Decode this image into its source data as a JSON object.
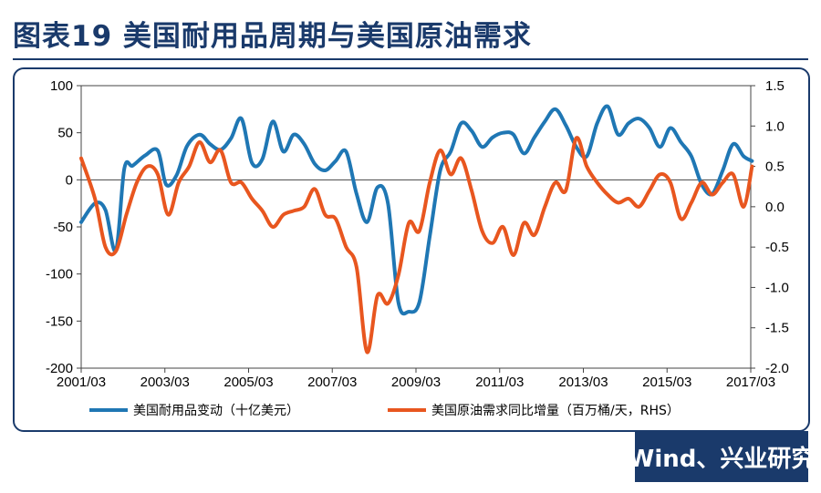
{
  "title": "图表19  美国耐用品周期与美国原油需求",
  "source": "Wind、兴业研究",
  "colors": {
    "title": "#1a3a6b",
    "frame": "#1a3a6b",
    "series1": "#1f77b4",
    "series2": "#e8561f"
  },
  "chart_data": {
    "type": "line",
    "title": "美国耐用品周期与美国原油需求",
    "x_ticks": [
      "2001/03",
      "2003/03",
      "2005/03",
      "2007/03",
      "2009/03",
      "2011/03",
      "2013/03",
      "2015/03",
      "2017/03"
    ],
    "x_range": [
      2001.17,
      2017.17
    ],
    "y_left": {
      "min": -200,
      "max": 100,
      "ticks": [
        "100",
        "50",
        "0",
        "-50",
        "-100",
        "-150",
        "-200"
      ]
    },
    "y_right": {
      "min": -2.0,
      "max": 1.5,
      "ticks": [
        "1.5",
        "1.0",
        "0.5",
        "0.0",
        "-0.5",
        "-1.0",
        "-1.5",
        "-2.0"
      ]
    },
    "series": [
      {
        "name": "美国耐用品变动（十亿美元）",
        "axis": "left",
        "x": [
          2001.17,
          2001.5,
          2001.75,
          2002.0,
          2002.2,
          2002.4,
          2002.7,
          2003.0,
          2003.2,
          2003.45,
          2003.7,
          2004.0,
          2004.25,
          2004.5,
          2004.75,
          2005.0,
          2005.25,
          2005.5,
          2005.75,
          2006.0,
          2006.25,
          2006.5,
          2006.75,
          2007.0,
          2007.25,
          2007.5,
          2007.75,
          2008.0,
          2008.25,
          2008.5,
          2008.75,
          2009.0,
          2009.25,
          2009.5,
          2009.75,
          2010.0,
          2010.25,
          2010.5,
          2010.75,
          2011.0,
          2011.25,
          2011.5,
          2011.75,
          2012.0,
          2012.25,
          2012.5,
          2012.75,
          2013.0,
          2013.25,
          2013.5,
          2013.75,
          2014.0,
          2014.25,
          2014.5,
          2014.75,
          2015.0,
          2015.25,
          2015.5,
          2015.75,
          2016.0,
          2016.25,
          2016.5,
          2016.75,
          2017.0,
          2017.2
        ],
        "y": [
          -45,
          -25,
          -32,
          -75,
          12,
          15,
          26,
          31,
          -5,
          5,
          36,
          48,
          38,
          32,
          44,
          65,
          18,
          22,
          62,
          30,
          48,
          38,
          17,
          10,
          20,
          30,
          -15,
          -45,
          -8,
          -25,
          -130,
          -140,
          -130,
          -60,
          10,
          30,
          60,
          52,
          35,
          45,
          50,
          48,
          28,
          45,
          62,
          75,
          58,
          35,
          25,
          60,
          78,
          48,
          60,
          65,
          55,
          35,
          55,
          40,
          25,
          -5,
          -15,
          10,
          38,
          25,
          20
        ]
      },
      {
        "name": "美国原油需求同比增量（百万桶/天，RHS）",
        "axis": "right",
        "x": [
          2001.17,
          2001.5,
          2001.75,
          2002.0,
          2002.25,
          2002.5,
          2002.75,
          2003.0,
          2003.25,
          2003.5,
          2003.75,
          2004.0,
          2004.25,
          2004.5,
          2004.75,
          2005.0,
          2005.25,
          2005.5,
          2005.75,
          2006.0,
          2006.25,
          2006.5,
          2006.75,
          2007.0,
          2007.25,
          2007.5,
          2007.75,
          2008.0,
          2008.25,
          2008.5,
          2008.75,
          2009.0,
          2009.25,
          2009.5,
          2009.75,
          2010.0,
          2010.25,
          2010.5,
          2010.75,
          2011.0,
          2011.25,
          2011.5,
          2011.75,
          2012.0,
          2012.25,
          2012.5,
          2012.75,
          2013.0,
          2013.25,
          2013.5,
          2013.75,
          2014.0,
          2014.25,
          2014.5,
          2014.75,
          2015.0,
          2015.25,
          2015.5,
          2015.75,
          2016.0,
          2016.25,
          2016.5,
          2016.75,
          2017.0,
          2017.2
        ],
        "y": [
          0.6,
          0.1,
          -0.5,
          -0.55,
          -0.1,
          0.3,
          0.5,
          0.4,
          -0.1,
          0.3,
          0.5,
          0.8,
          0.55,
          0.7,
          0.3,
          0.3,
          0.1,
          -0.05,
          -0.25,
          -0.1,
          -0.05,
          0.0,
          0.22,
          -0.1,
          -0.15,
          -0.5,
          -0.75,
          -1.8,
          -1.1,
          -1.2,
          -0.85,
          -0.2,
          -0.3,
          0.3,
          0.7,
          0.4,
          0.6,
          0.2,
          -0.3,
          -0.45,
          -0.25,
          -0.6,
          -0.2,
          -0.35,
          0.0,
          0.3,
          0.2,
          0.85,
          0.5,
          0.3,
          0.15,
          0.05,
          0.1,
          0.0,
          0.2,
          0.4,
          0.3,
          -0.15,
          0.05,
          0.3,
          0.15,
          0.3,
          0.4,
          0.0,
          0.5
        ]
      }
    ]
  }
}
